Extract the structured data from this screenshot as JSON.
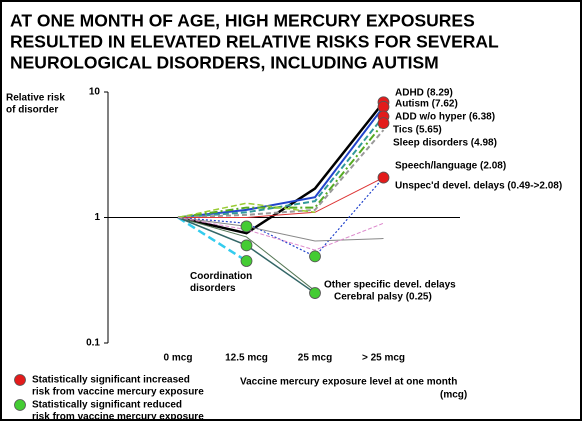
{
  "chart_data": {
    "type": "line",
    "title": [
      "AT ONE MONTH OF AGE, HIGH MERCURY EXPOSURES",
      "RESULTED IN ELEVATED RELATIVE RISKS FOR SEVERAL",
      "NEUROLOGICAL DISORDERS, INCLUDING AUTISM"
    ],
    "y_label": [
      "Relative risk",
      "of disorder"
    ],
    "x_label": [
      "Vaccine mercury exposure level at one month",
      "(mcg)"
    ],
    "categories": [
      "0 mcg",
      "12.5 mcg",
      "25 mcg",
      "> 25 mcg"
    ],
    "log_scale": true,
    "ylim": [
      0.1,
      10
    ],
    "yticks": [
      0.1,
      1,
      10
    ],
    "series": [
      {
        "label": "ADHD (8.29)",
        "color": "#000000",
        "width": 2.5,
        "dash": "",
        "values": [
          1,
          0.75,
          1.7,
          8.29
        ]
      },
      {
        "label": "Autism (7.62)",
        "color": "#2244cc",
        "width": 2,
        "dash": "",
        "values": [
          1,
          1.15,
          1.45,
          7.62
        ]
      },
      {
        "label": "ADD w/o hyper (6.38)",
        "color": "#339999",
        "width": 2,
        "dash": "6 3",
        "values": [
          1,
          1.1,
          1.35,
          6.38
        ]
      },
      {
        "label": "Tics (5.65)",
        "color": "#55aa22",
        "width": 2,
        "dash": "8 3 2 3",
        "values": [
          1,
          1.2,
          1.2,
          5.65
        ]
      },
      {
        "label": "Sleep disorders (4.98)",
        "color": "#999999",
        "width": 2,
        "dash": "5 3",
        "values": [
          1,
          1.05,
          1.15,
          4.98
        ]
      },
      {
        "label": "Speech/language (2.08)",
        "color": "#dd3333",
        "width": 1,
        "dash": "",
        "values": [
          1,
          1.0,
          1.1,
          2.08
        ]
      },
      {
        "label": "Unspec'd devel. delays (0.49->2.08)",
        "color": "#2244cc",
        "width": 1.2,
        "dash": "2 2",
        "values": [
          1,
          0.9,
          0.49,
          2.08
        ]
      },
      {
        "label": "Coordination disorders",
        "color": "#33ccee",
        "width": 2.5,
        "dash": "8 4",
        "values": [
          1,
          0.45,
          null,
          null
        ]
      },
      {
        "label": "Other specific  devel. delays",
        "color": "#557755",
        "width": 1,
        "dash": "",
        "values": [
          1,
          0.7,
          0.26,
          null
        ]
      },
      {
        "label": "Cerebral palsy (0.25)",
        "color": "#336666",
        "width": 1.5,
        "dash": "",
        "values": [
          1,
          0.6,
          0.25,
          null
        ]
      },
      {
        "color": "#888888",
        "width": 1,
        "dash": "",
        "values": [
          1,
          0.85,
          0.65,
          0.68
        ]
      },
      {
        "color": "#99cc33",
        "width": 1.5,
        "dash": "6 3",
        "values": [
          1,
          1.3,
          1.1,
          null
        ]
      },
      {
        "color": "#dd88cc",
        "width": 1,
        "dash": "4 2",
        "values": [
          1,
          0.8,
          0.55,
          0.9
        ]
      }
    ],
    "markers": [
      {
        "series": 0,
        "index": 3,
        "color": "#e31b1b"
      },
      {
        "series": 1,
        "index": 3,
        "color": "#e31b1b"
      },
      {
        "series": 2,
        "index": 3,
        "color": "#e31b1b"
      },
      {
        "series": 3,
        "index": 3,
        "color": "#e31b1b"
      },
      {
        "series": 5,
        "index": 3,
        "color": "#e31b1b"
      },
      {
        "series": 6,
        "index": 2,
        "color": "#44cc33"
      },
      {
        "series": 7,
        "index": 1,
        "color": "#44cc33"
      },
      {
        "series": 9,
        "index": 1,
        "color": "#44cc33"
      },
      {
        "series": 10,
        "index": 1,
        "color": "#44cc33"
      },
      {
        "series": 9,
        "index": 2,
        "color": "#44cc33"
      }
    ],
    "legend": [
      {
        "color": "#e31b1b",
        "text": [
          "Statistically significant increased",
          "risk from vaccine mercury exposure"
        ]
      },
      {
        "color": "#44cc33",
        "text": [
          "Statistically significant reduced",
          "risk from vaccine mercury exposure"
        ]
      }
    ]
  }
}
